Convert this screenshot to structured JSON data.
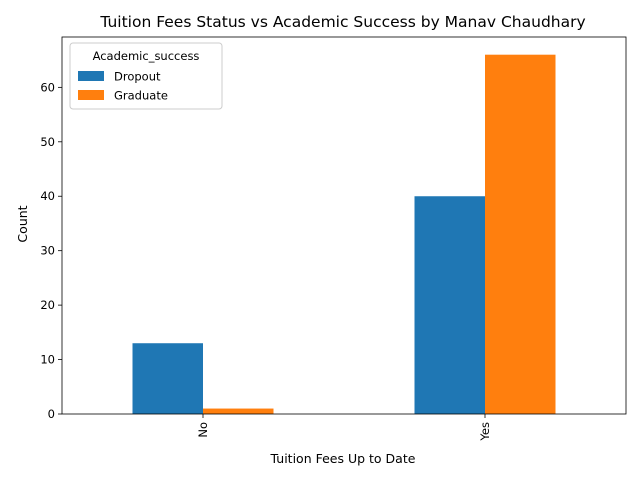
{
  "chart_data": {
    "type": "bar",
    "title": "Tuition Fees Status vs Academic Success by Manav Chaudhary",
    "xlabel": "Tuition Fees Up to Date",
    "ylabel": "Count",
    "categories": [
      "No",
      "Yes"
    ],
    "series": [
      {
        "name": "Dropout",
        "values": [
          13,
          40
        ],
        "color": "#1f77b4"
      },
      {
        "name": "Graduate",
        "values": [
          1,
          66
        ],
        "color": "#ff7f0e"
      }
    ],
    "ylim": [
      0,
      69.25
    ],
    "yticks": [
      0,
      10,
      20,
      30,
      40,
      50,
      60
    ],
    "grid": false,
    "legend": {
      "title": "Academic_success",
      "placement": "top-left"
    },
    "x_tick_rotation": "vertical"
  }
}
